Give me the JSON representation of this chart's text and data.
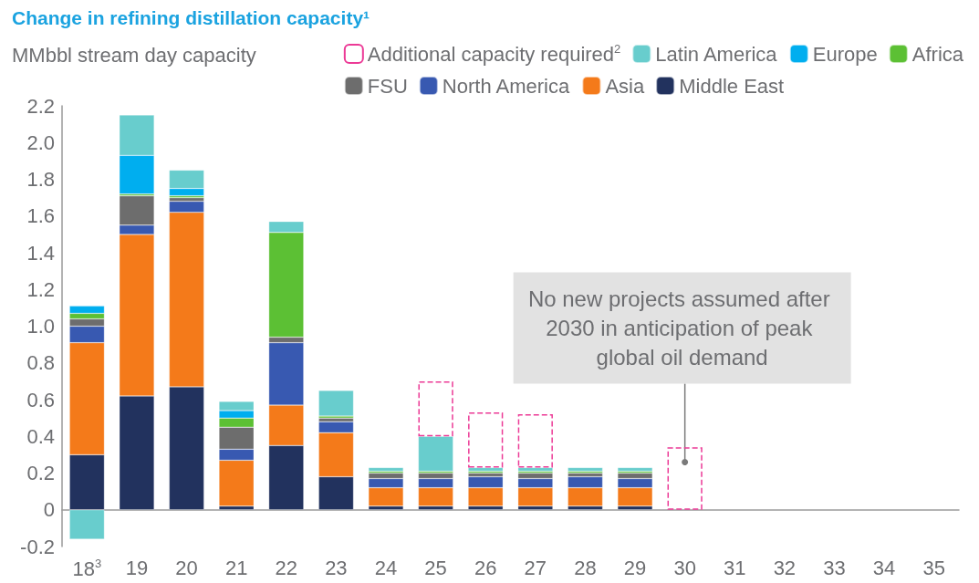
{
  "chart_data": {
    "type": "bar",
    "title": "Change in refining distillation capacity¹",
    "subtitle": "MMbbl stream day capacity",
    "categories": [
      "18$^{3}$",
      "19",
      "20",
      "21",
      "22",
      "23",
      "24",
      "25",
      "26",
      "27",
      "28",
      "29",
      "30",
      "31",
      "32",
      "33",
      "34",
      "35"
    ],
    "stacked": true,
    "series": [
      {
        "name": "Middle East",
        "color": "#22325e",
        "values": [
          0.3,
          0.62,
          0.67,
          0.02,
          0.35,
          0.18,
          0.02,
          0.02,
          0.02,
          0.02,
          0.02,
          0.02,
          null,
          null,
          null,
          null,
          null,
          null
        ]
      },
      {
        "name": "Asia",
        "color": "#f47a1a",
        "values": [
          0.61,
          0.88,
          0.95,
          0.25,
          0.22,
          0.24,
          0.1,
          0.1,
          0.1,
          0.1,
          0.1,
          0.1,
          null,
          null,
          null,
          null,
          null,
          null
        ]
      },
      {
        "name": "North America",
        "color": "#3859b1",
        "values": [
          0.09,
          0.05,
          0.06,
          0.06,
          0.34,
          0.06,
          0.05,
          0.05,
          0.06,
          0.05,
          0.06,
          0.05,
          null,
          null,
          null,
          null,
          null,
          null
        ]
      },
      {
        "name": "FSU",
        "color": "#6d6d6d",
        "values": [
          0.04,
          0.16,
          0.02,
          0.12,
          0.03,
          0.02,
          0.03,
          0.03,
          0.02,
          0.03,
          0.02,
          0.03,
          null,
          null,
          null,
          null,
          null,
          null
        ]
      },
      {
        "name": "Africa",
        "color": "#5cc034",
        "values": [
          0.03,
          0.01,
          0.01,
          0.05,
          0.57,
          0.01,
          0.01,
          0.01,
          0.01,
          0.01,
          0.01,
          0.01,
          null,
          null,
          null,
          null,
          null,
          null
        ]
      },
      {
        "name": "Europe",
        "color": "#00aeef",
        "values": [
          0.04,
          0.21,
          0.04,
          0.04,
          null,
          null,
          null,
          null,
          null,
          null,
          null,
          null,
          null,
          null,
          null,
          null,
          null,
          null
        ]
      },
      {
        "name": "Latin America",
        "color": "#68cdcd",
        "values": [
          -0.16,
          0.22,
          0.1,
          0.05,
          0.06,
          0.14,
          0.02,
          0.19,
          0.02,
          0.02,
          0.02,
          0.02,
          null,
          null,
          null,
          null,
          null,
          null
        ]
      },
      {
        "name": "Additional capacity required$^{2}$",
        "color": "#ec3a96",
        "line_style": "dashed",
        "values": [
          null,
          null,
          null,
          null,
          null,
          null,
          null,
          0.3,
          0.3,
          0.29,
          null,
          null,
          0.34,
          null,
          null,
          null,
          null,
          null
        ]
      }
    ],
    "ylim": [
      -0.2,
      2.2
    ],
    "yticks": [
      -0.2,
      0,
      0.2,
      0.4,
      0.6,
      0.8,
      {
        "value": 1,
        "label": "1.0"
      },
      1.2,
      1.4,
      1.6,
      1.8,
      {
        "value": 2,
        "label": "2.0"
      },
      2.2
    ],
    "grid": false,
    "legend": "top right",
    "annotations": [
      {
        "text": "No new projects assumed after 2030 in anticipation of peak global oil demand",
        "x": "30",
        "y": 0.26
      }
    ]
  }
}
